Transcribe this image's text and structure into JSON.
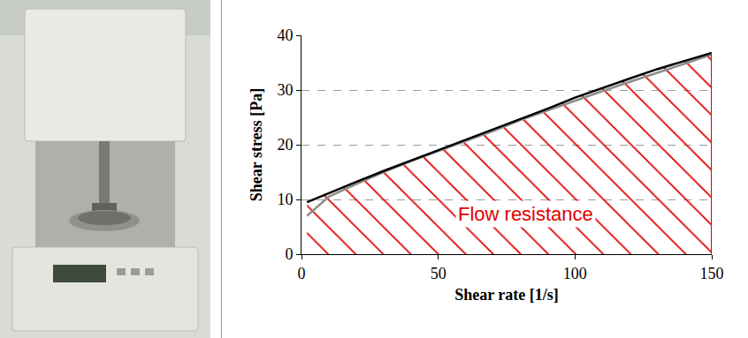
{
  "chart_data": {
    "type": "line",
    "xlabel": "Shear rate [1/s]",
    "ylabel": "Shear stress [Pa]",
    "x": [
      2,
      10,
      20,
      30,
      40,
      50,
      60,
      70,
      80,
      90,
      100,
      110,
      120,
      130,
      140,
      150
    ],
    "series": [
      {
        "color": "#000000",
        "values": [
          9.5,
          11.2,
          13.2,
          15.2,
          17.1,
          18.9,
          20.8,
          22.7,
          24.7,
          26.6,
          28.6,
          30.4,
          32.1,
          33.8,
          35.3,
          36.8
        ]
      },
      {
        "color": "#8c8c8c",
        "values": [
          7.0,
          10.5,
          12.8,
          15.0,
          17.0,
          18.8,
          20.6,
          22.5,
          24.5,
          26.3,
          28.1,
          29.8,
          31.5,
          33.1,
          34.8,
          36.5
        ]
      }
    ],
    "annotations": [
      {
        "text": "Flow resistance",
        "x": 82,
        "y": 7.4,
        "color": "#e00000"
      }
    ],
    "xlim": [
      0,
      150
    ],
    "xticks": [
      0,
      50,
      100,
      150
    ],
    "ylim": [
      0,
      40
    ],
    "yticks": [
      0,
      10,
      20,
      30,
      40
    ],
    "grid": "y"
  }
}
